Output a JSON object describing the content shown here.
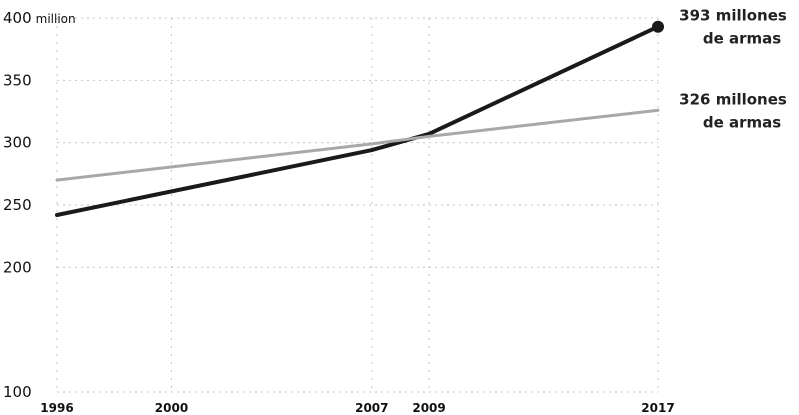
{
  "chart_data": {
    "type": "line",
    "x": [
      1996,
      2007,
      2009,
      2017
    ],
    "x_ticks": [
      "1996",
      "2000",
      "2007",
      "2009",
      "2017"
    ],
    "y_ticks": [
      "100",
      "200",
      "250",
      "300",
      "350",
      "400 million"
    ],
    "ylim": [
      100,
      400
    ],
    "xlim": [
      1996,
      2017
    ],
    "grid": true,
    "series": [
      {
        "values": [
          242,
          294,
          307,
          393
        ],
        "color": "#1a1a1a",
        "style": "thick-solid",
        "endpoint_marker": true,
        "label_line1": "393 millones",
        "label_line2": "de armas"
      },
      {
        "values": [
          270,
          299,
          305,
          326
        ],
        "color": "#a8a8a8",
        "style": "thin-light",
        "endpoint_marker": false,
        "label_line1": "326 millones",
        "label_line2": "de armas"
      }
    ]
  }
}
